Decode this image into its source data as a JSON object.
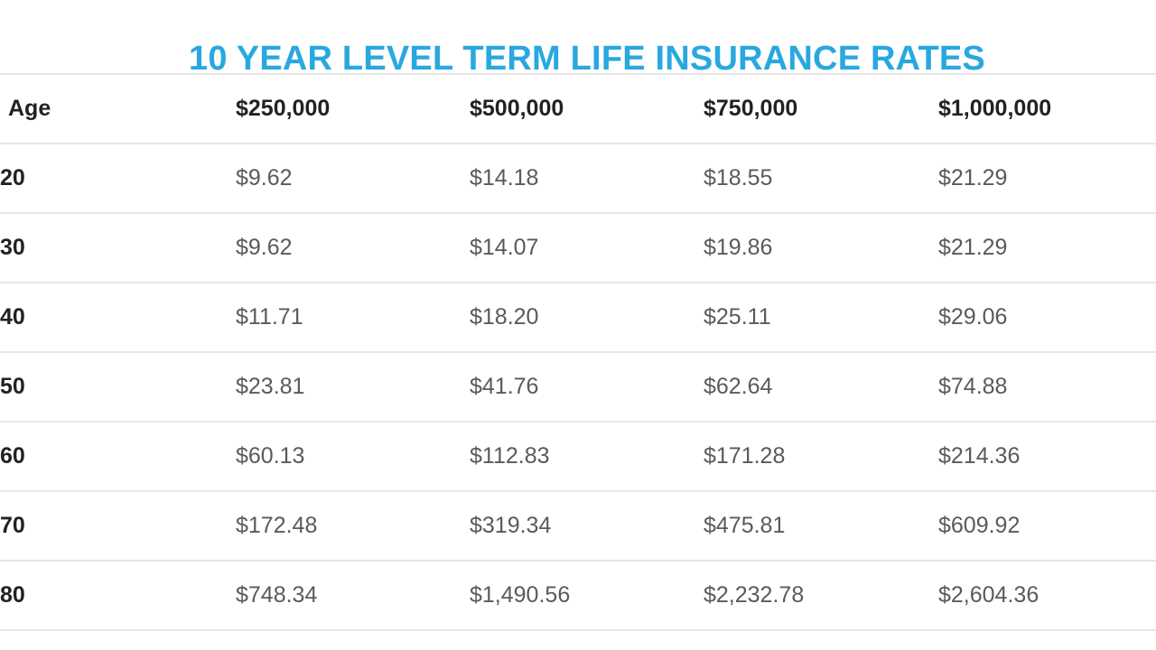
{
  "title": "10 YEAR LEVEL TERM LIFE INSURANCE RATES",
  "table": {
    "headers": [
      "Age",
      "$250,000",
      "$500,000",
      "$750,000",
      "$1,000,000"
    ],
    "rows": [
      {
        "age": "20",
        "rates": [
          "$9.62",
          "$14.18",
          "$18.55",
          "$21.29"
        ]
      },
      {
        "age": "30",
        "rates": [
          "$9.62",
          "$14.07",
          "$19.86",
          "$21.29"
        ]
      },
      {
        "age": "40",
        "rates": [
          "$11.71",
          "$18.20",
          "$25.11",
          "$29.06"
        ]
      },
      {
        "age": "50",
        "rates": [
          "$23.81",
          "$41.76",
          "$62.64",
          "$74.88"
        ]
      },
      {
        "age": "60",
        "rates": [
          "$60.13",
          "$112.83",
          "$171.28",
          "$214.36"
        ]
      },
      {
        "age": "70",
        "rates": [
          "$172.48",
          "$319.34",
          "$475.81",
          "$609.92"
        ]
      },
      {
        "age": "80",
        "rates": [
          "$748.34",
          "$1,490.56",
          "$2,232.78",
          "$2,604.36"
        ]
      }
    ]
  },
  "colors": {
    "title": "#29a8e0",
    "header_text": "#222222",
    "rate_text": "#5a5a5a",
    "row_border": "#e6e6e6"
  }
}
